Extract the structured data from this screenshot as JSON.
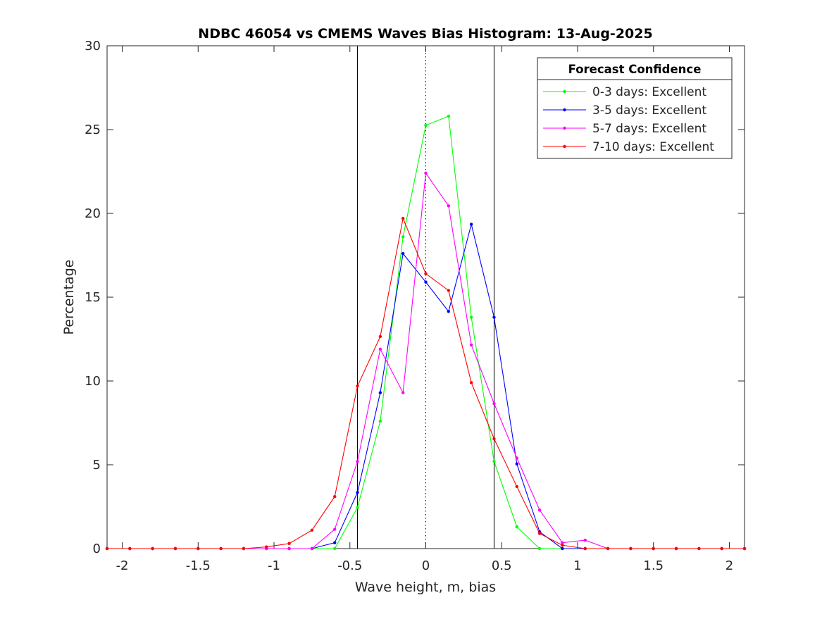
{
  "chart_data": {
    "type": "line",
    "title": "NDBC 46054 vs CMEMS Waves Bias Histogram: 13-Aug-2025",
    "xlabel": "Wave height, m, bias",
    "ylabel": "Percentage",
    "xlim": [
      -2.1,
      2.1
    ],
    "ylim": [
      0,
      30
    ],
    "xticks": [
      -2,
      -1.5,
      -1,
      -0.5,
      0,
      0.5,
      1,
      1.5,
      2
    ],
    "xtick_labels": [
      "-2",
      "-1.5",
      "-1",
      "-0.5",
      "0",
      "0.5",
      "1",
      "1.5",
      "2"
    ],
    "yticks": [
      0,
      5,
      10,
      15,
      20,
      25,
      30
    ],
    "ytick_labels": [
      "0",
      "5",
      "10",
      "15",
      "20",
      "25",
      "30"
    ],
    "grid": false,
    "legend": {
      "title": "Forecast Confidence",
      "placement": "top-right"
    },
    "reference_lines": [
      {
        "x": -0.45,
        "style": "solid"
      },
      {
        "x": 0,
        "style": "dotted"
      },
      {
        "x": 0.45,
        "style": "solid"
      }
    ],
    "x": [
      -2.1,
      -1.95,
      -1.8,
      -1.65,
      -1.5,
      -1.35,
      -1.2,
      -1.05,
      -0.9,
      -0.75,
      -0.6,
      -0.45,
      -0.3,
      -0.15,
      0,
      0.15,
      0.3,
      0.45,
      0.6,
      0.75,
      0.9,
      1.05,
      1.2,
      1.35,
      1.5,
      1.65,
      1.8,
      1.95,
      2.1
    ],
    "series": [
      {
        "name": "0-3 days: Excellent",
        "color": "#00ff00",
        "values": [
          0,
          0,
          0,
          0,
          0,
          0,
          0,
          0,
          0,
          0,
          0,
          2.45,
          7.6,
          18.6,
          25.25,
          25.8,
          13.8,
          5.2,
          1.3,
          0,
          0,
          0,
          0,
          0,
          0,
          0,
          0,
          0,
          0
        ]
      },
      {
        "name": "3-5 days: Excellent",
        "color": "#0000ff",
        "values": [
          0,
          0,
          0,
          0,
          0,
          0,
          0,
          0,
          0,
          0,
          0.35,
          3.35,
          9.3,
          17.6,
          15.9,
          14.15,
          19.35,
          13.8,
          5.05,
          1.0,
          0,
          0,
          0,
          0,
          0,
          0,
          0,
          0,
          0
        ]
      },
      {
        "name": "5-7 days: Excellent",
        "color": "#ff00ff",
        "values": [
          0,
          0,
          0,
          0,
          0,
          0,
          0,
          0,
          0,
          0,
          1.15,
          5.2,
          11.9,
          9.3,
          22.4,
          20.45,
          12.15,
          8.65,
          5.4,
          2.3,
          0.35,
          0.5,
          0,
          0,
          0,
          0,
          0,
          0,
          0
        ]
      },
      {
        "name": "7-10 days: Excellent",
        "color": "#ff0000",
        "values": [
          0,
          0,
          0,
          0,
          0,
          0,
          0,
          0.1,
          0.3,
          1.1,
          3.1,
          9.7,
          12.65,
          19.7,
          16.4,
          15.4,
          9.9,
          6.55,
          3.7,
          0.9,
          0.2,
          0,
          0,
          0,
          0,
          0,
          0,
          0,
          0
        ]
      }
    ]
  }
}
